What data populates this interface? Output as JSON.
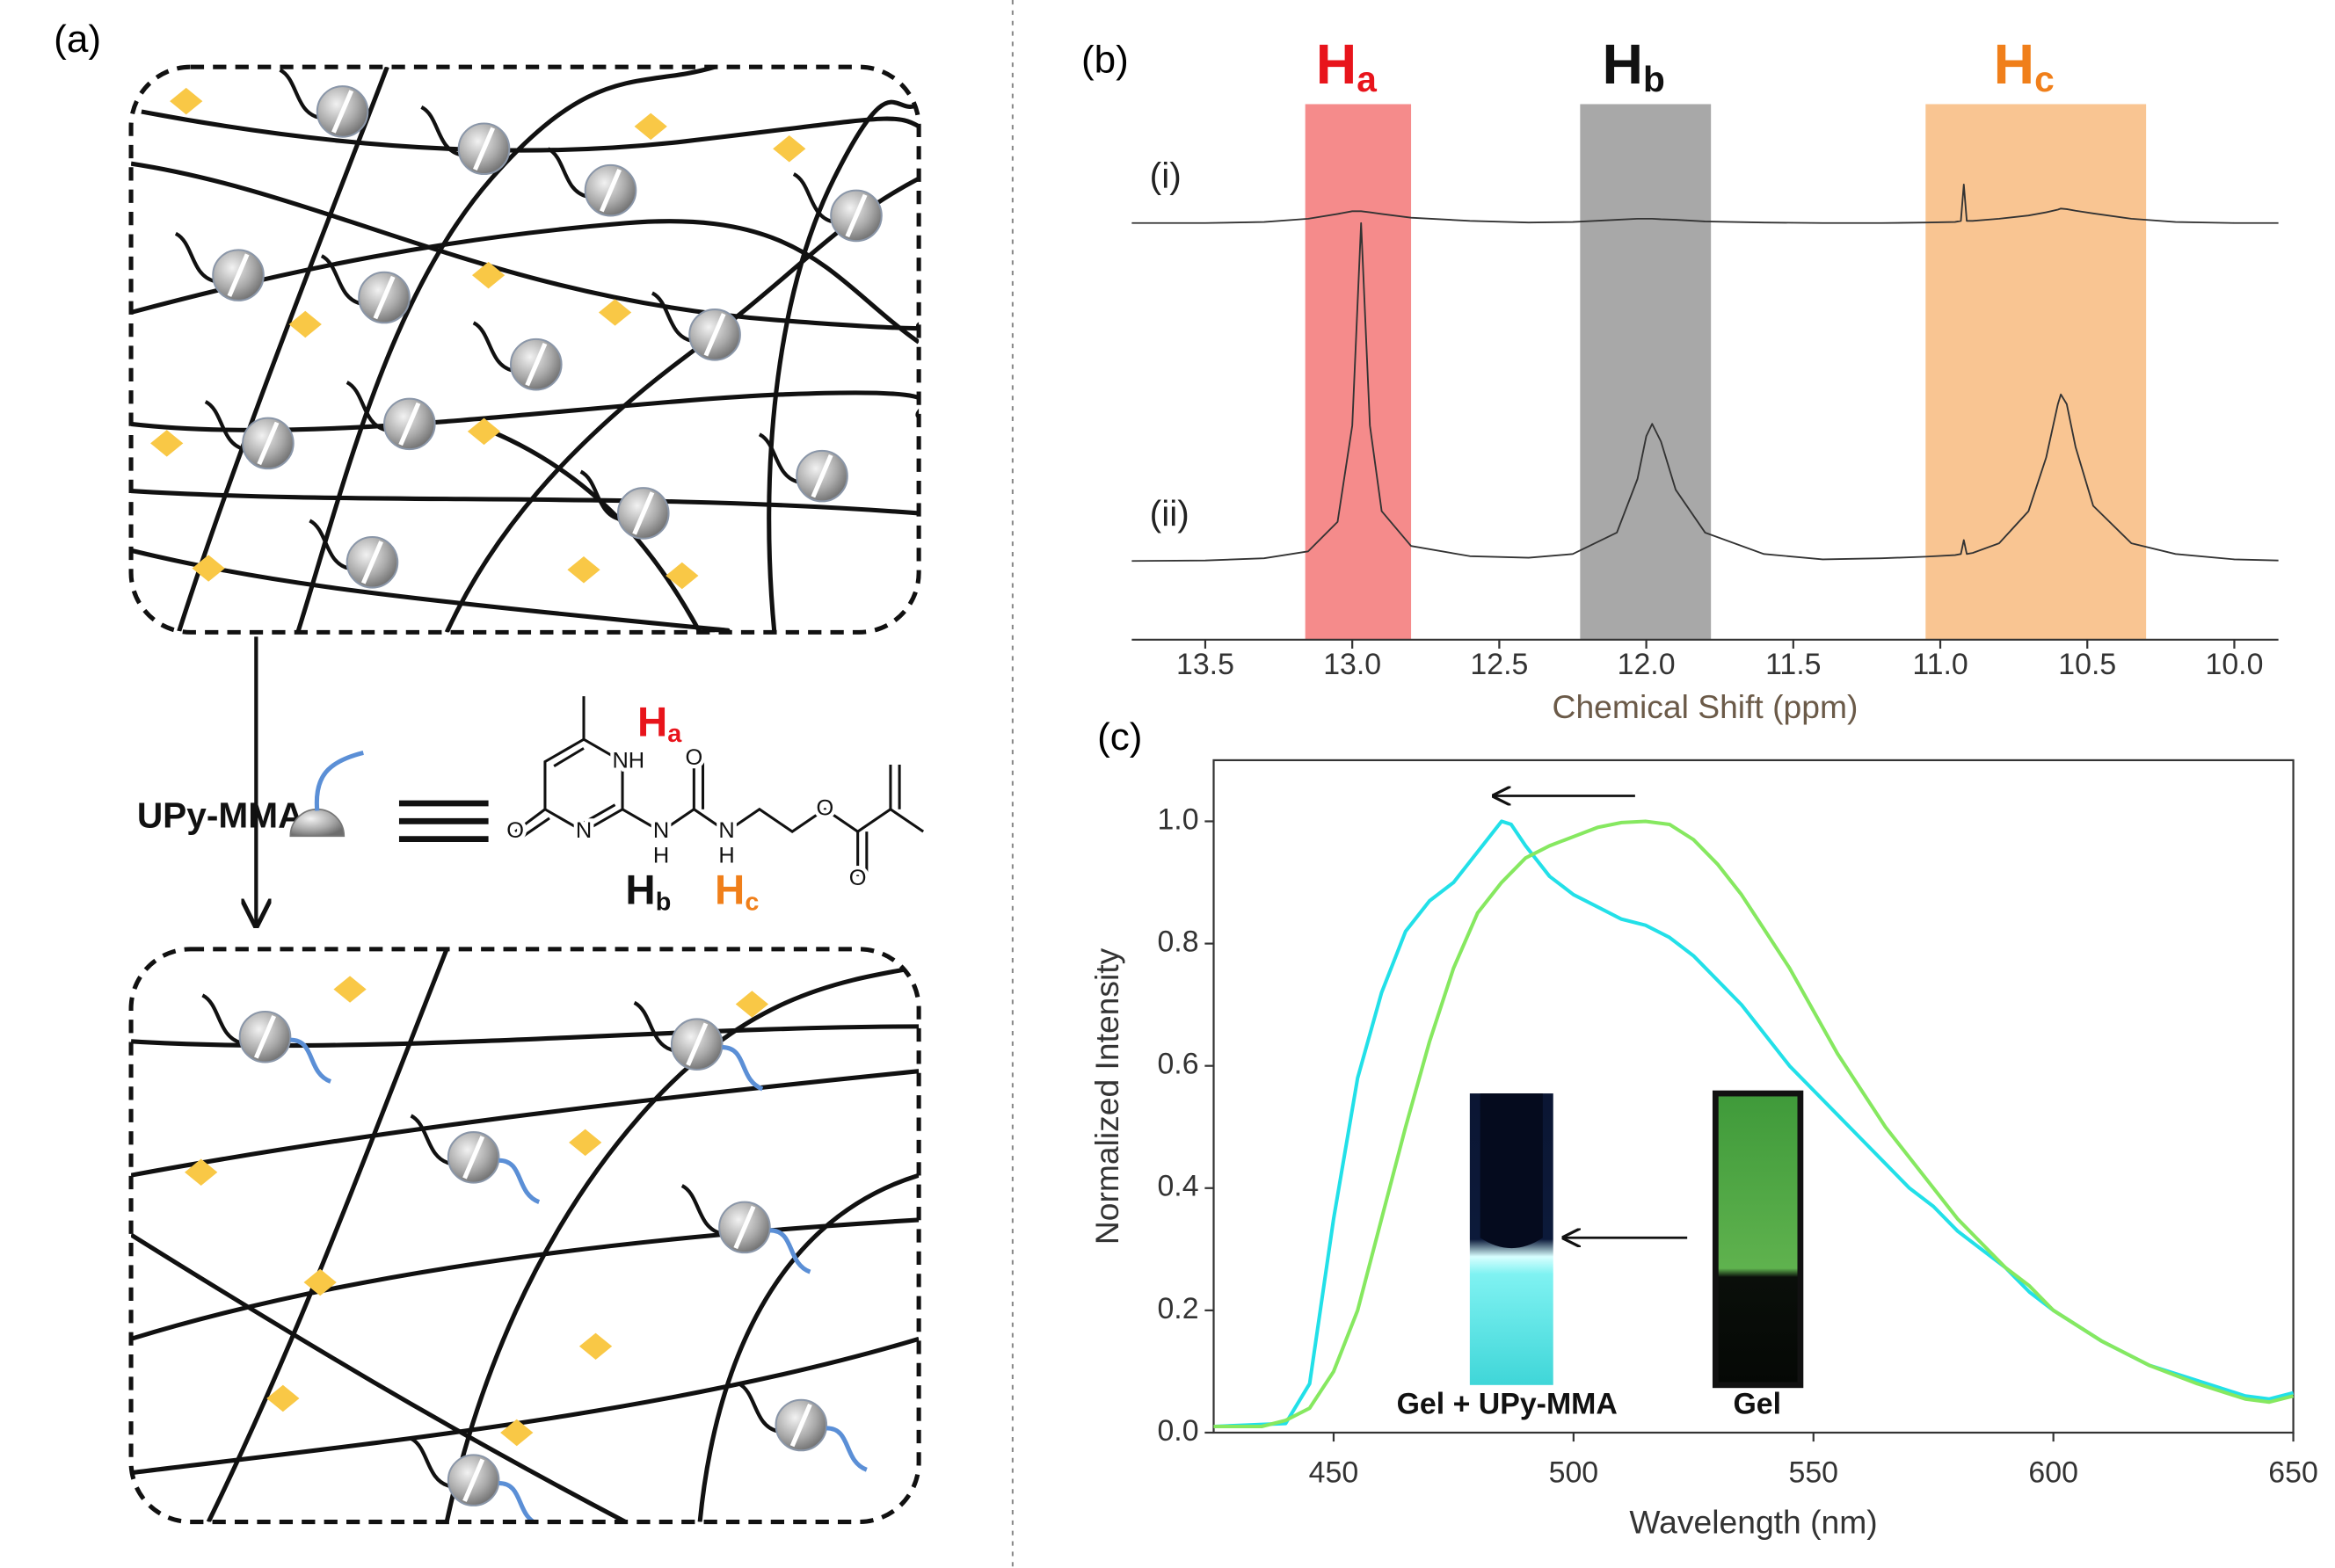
{
  "panels": {
    "a": "(a)",
    "b": "(b)",
    "c": "(c)"
  },
  "diagram": {
    "reagent": "UPy-MMA",
    "atoms": [
      "NH",
      "O",
      "N",
      "N",
      "H",
      "O",
      "N",
      "H",
      "O",
      "O"
    ],
    "protons": [
      {
        "symbol": "H",
        "sub": "a",
        "color": "#e8141b"
      },
      {
        "symbol": "H",
        "sub": "b",
        "color": "#111111"
      },
      {
        "symbol": "H",
        "sub": "c",
        "color": "#f07f1a"
      }
    ]
  },
  "chart_data": [
    {
      "type": "line",
      "x_label": "Chemical Shift (ppm)",
      "x": [
        13.75,
        13.5,
        13.3,
        13.15,
        13.05,
        13.0,
        12.97,
        12.94,
        12.9,
        12.8,
        12.6,
        12.4,
        12.25,
        12.1,
        12.03,
        12.0,
        11.98,
        11.95,
        11.9,
        11.8,
        11.6,
        11.4,
        11.2,
        11.05,
        10.95,
        10.93,
        10.92,
        10.91,
        10.89,
        10.8,
        10.7,
        10.64,
        10.6,
        10.59,
        10.57,
        10.54,
        10.48,
        10.35,
        10.2,
        10.0,
        9.85
      ],
      "series": [
        {
          "name": "(i)",
          "color": "#333333",
          "values": [
            77.8,
            77.8,
            78,
            78.6,
            79.5,
            80,
            80,
            79.8,
            79.5,
            78.8,
            78.2,
            77.9,
            78,
            78.4,
            78.6,
            78.6,
            78.6,
            78.5,
            78.4,
            78.1,
            77.9,
            77.8,
            77.8,
            77.9,
            78,
            78.2,
            85,
            78.2,
            78.2,
            78.6,
            79.2,
            79.8,
            80.3,
            80.5,
            80.4,
            80.1,
            79.6,
            78.6,
            78,
            77.8,
            77.8
          ]
        },
        {
          "name": "(ii)",
          "color": "#333333",
          "values": [
            14.7,
            14.8,
            15.2,
            16.5,
            22,
            40,
            77.8,
            40,
            24,
            17.5,
            15.6,
            15.3,
            16,
            20,
            30,
            38,
            40.3,
            37,
            28,
            20,
            16,
            15,
            15.2,
            15.5,
            15.8,
            16,
            18.6,
            16,
            16.2,
            18,
            24,
            34,
            44,
            45.8,
            44,
            36,
            25,
            18,
            16,
            15,
            14.8
          ]
        }
      ],
      "xlim": [
        13.75,
        9.85
      ],
      "xticks": [
        13.5,
        {
          "value": 13,
          "label": "13.0"
        },
        12.5,
        {
          "value": 12,
          "label": "12.0"
        },
        11.5,
        {
          "value": 11,
          "label": "11.0"
        },
        10.5,
        {
          "value": 10,
          "label": "10.0"
        }
      ],
      "ylim": [
        0,
        100
      ],
      "bands": [
        {
          "symbol": "H",
          "sub": "a",
          "from": 13.16,
          "to": 12.8,
          "color": "#f58b8b",
          "label_color": "#e8141b"
        },
        {
          "symbol": "H",
          "sub": "b",
          "from": 12.225,
          "to": 11.78,
          "color": "#a8a8a8",
          "label_color": "#111111"
        },
        {
          "symbol": "H",
          "sub": "c",
          "from": 11.05,
          "to": 10.3,
          "color": "#f9c592",
          "label_color": "#f07f1a"
        }
      ]
    },
    {
      "type": "line",
      "x_label": "Wavelength (nm)",
      "y_label": "Normalized Intensity",
      "series": [
        {
          "name": "Gel + UPy-MMA",
          "color": "#22e0e8",
          "x": [
            425,
            440,
            445,
            450,
            455,
            460,
            465,
            470,
            475,
            480,
            485,
            487,
            490,
            495,
            500,
            505,
            510,
            515,
            520,
            525,
            530,
            535,
            540,
            545,
            550,
            555,
            560,
            565,
            570,
            575,
            580,
            585,
            590,
            595,
            600,
            610,
            620,
            630,
            640,
            645,
            650
          ],
          "values": [
            0.01,
            0.015,
            0.08,
            0.35,
            0.58,
            0.72,
            0.82,
            0.87,
            0.9,
            0.95,
            1.0,
            0.995,
            0.96,
            0.91,
            0.88,
            0.86,
            0.84,
            0.83,
            0.81,
            0.78,
            0.74,
            0.7,
            0.65,
            0.6,
            0.56,
            0.52,
            0.48,
            0.44,
            0.4,
            0.37,
            0.33,
            0.3,
            0.27,
            0.23,
            0.2,
            0.15,
            0.11,
            0.085,
            0.06,
            0.055,
            0.065
          ]
        },
        {
          "name": "Gel",
          "color": "#86e860",
          "x": [
            425,
            435,
            440,
            445,
            450,
            455,
            460,
            465,
            470,
            475,
            480,
            485,
            490,
            495,
            500,
            505,
            510,
            515,
            520,
            525,
            530,
            535,
            540,
            545,
            550,
            555,
            560,
            565,
            570,
            575,
            580,
            585,
            590,
            595,
            600,
            610,
            620,
            630,
            640,
            645,
            650
          ],
          "values": [
            0.01,
            0.01,
            0.02,
            0.04,
            0.1,
            0.2,
            0.35,
            0.5,
            0.64,
            0.76,
            0.85,
            0.9,
            0.94,
            0.96,
            0.975,
            0.99,
            0.998,
            1.0,
            0.995,
            0.97,
            0.93,
            0.88,
            0.82,
            0.76,
            0.69,
            0.62,
            0.56,
            0.5,
            0.45,
            0.4,
            0.35,
            0.31,
            0.27,
            0.24,
            0.2,
            0.15,
            0.11,
            0.08,
            0.055,
            0.05,
            0.06
          ]
        }
      ],
      "xlim": [
        425,
        650
      ],
      "xticks": [
        450,
        500,
        550,
        600,
        650
      ],
      "ylim": [
        0,
        1.1
      ],
      "yticks": [
        {
          "value": 0,
          "label": "0.0"
        },
        {
          "value": 0.2,
          "label": "0.2"
        },
        {
          "value": 0.4,
          "label": "0.4"
        },
        {
          "value": 0.6,
          "label": "0.6"
        },
        {
          "value": 0.8,
          "label": "0.8"
        },
        {
          "value": 1,
          "label": "1.0"
        }
      ]
    }
  ]
}
